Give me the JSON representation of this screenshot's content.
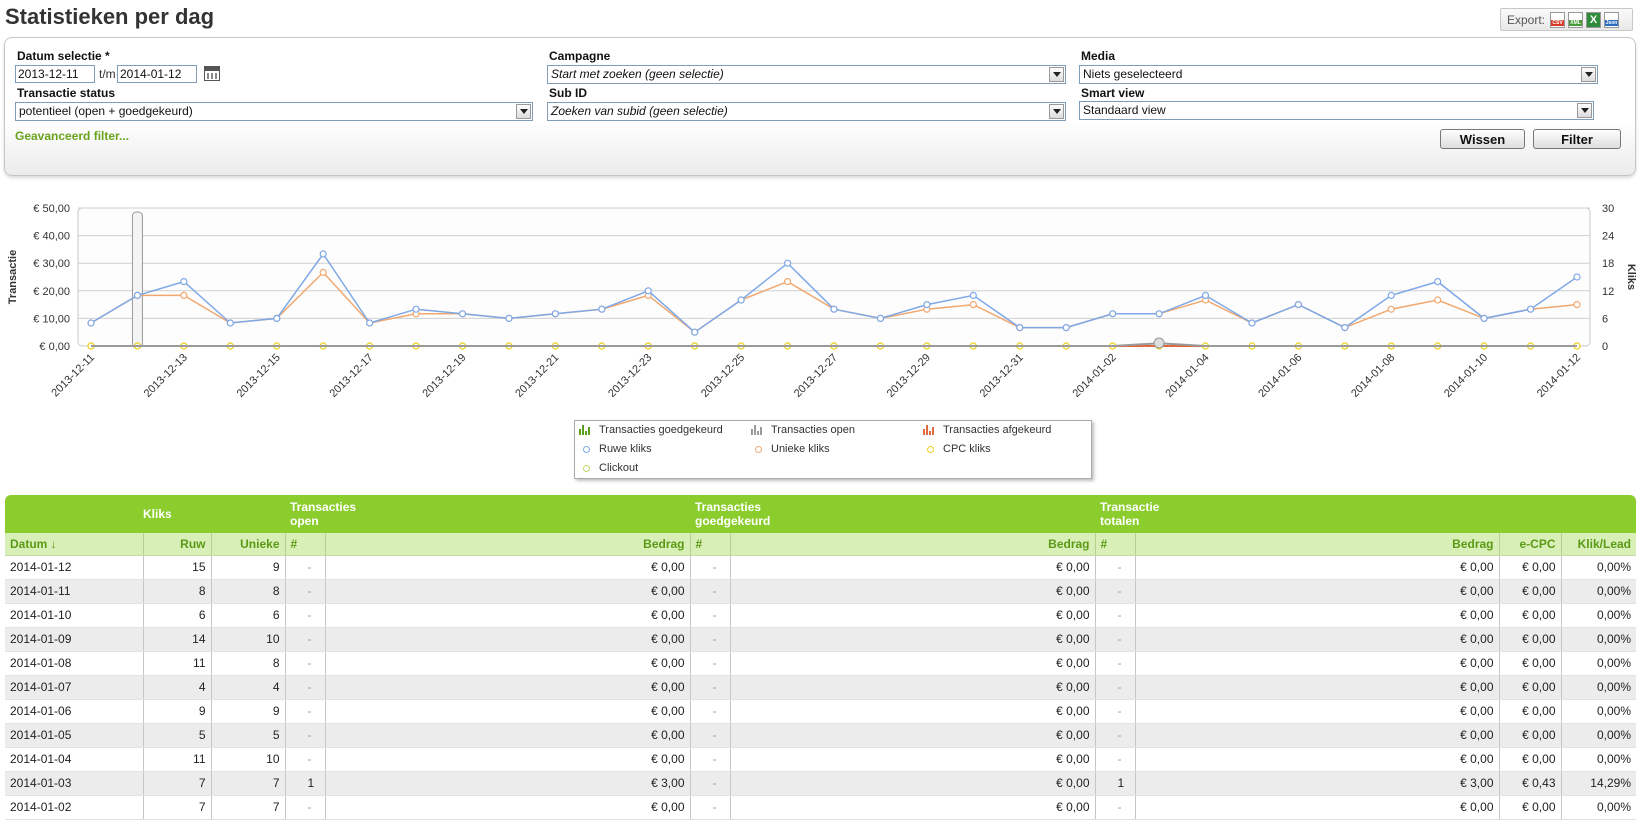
{
  "page": {
    "title": "Statistieken per dag"
  },
  "export": {
    "label": "Export:",
    "csv_icon": "csv-file-icon",
    "xml_icon": "xml-file-icon",
    "xls_icon": "excel-file-icon",
    "json_icon": "json-file-icon",
    "csv_text": "CSV",
    "xml_text": "XML",
    "xls_text": "X",
    "json_text": "Json"
  },
  "filters": {
    "date_label": "Datum selectie *",
    "date_from": "2013-12-11",
    "date_sep": "t/m",
    "date_to": "2014-01-12",
    "status_label": "Transactie status",
    "status_value": "potentieel (open + goedgekeurd)",
    "campaign_label": "Campagne",
    "campaign_value": "Start met zoeken (geen selectie)",
    "subid_label": "Sub ID",
    "subid_value": "Zoeken van subid (geen selectie)",
    "media_label": "Media",
    "media_value": "Niets geselecteerd",
    "smartview_label": "Smart view",
    "smartview_value": "Standaard view",
    "advanced_link": "Geavanceerd filter...",
    "clear_button": "Wissen",
    "filter_button": "Filter"
  },
  "chart_data": {
    "type": "line",
    "x": [
      "2013-12-11",
      "2013-12-12",
      "2013-12-13",
      "2013-12-14",
      "2013-12-15",
      "2013-12-16",
      "2013-12-17",
      "2013-12-18",
      "2013-12-19",
      "2013-12-20",
      "2013-12-21",
      "2013-12-22",
      "2013-12-23",
      "2013-12-24",
      "2013-12-25",
      "2013-12-26",
      "2013-12-27",
      "2013-12-28",
      "2013-12-29",
      "2013-12-30",
      "2013-12-31",
      "2014-01-01",
      "2014-01-02",
      "2014-01-03",
      "2014-01-04",
      "2014-01-05",
      "2014-01-06",
      "2014-01-07",
      "2014-01-08",
      "2014-01-09",
      "2014-01-10",
      "2014-01-11",
      "2014-01-12"
    ],
    "tick_labels": [
      "2013-12-11",
      "2013-12-13",
      "2013-12-15",
      "2013-12-17",
      "2013-12-19",
      "2013-12-21",
      "2013-12-23",
      "2013-12-25",
      "2013-12-27",
      "2013-12-29",
      "2013-12-31",
      "2014-01-02",
      "2014-01-04",
      "2014-01-06",
      "2014-01-08",
      "2014-01-10",
      "2014-01-12"
    ],
    "ylabel_left": "Transactie",
    "ylabel_right": "Kliks",
    "y_left_ticks": [
      "€ 0,00",
      "€ 10,00",
      "€ 20,00",
      "€ 30,00",
      "€ 40,00",
      "€ 50,00"
    ],
    "y_left_range": [
      0,
      50
    ],
    "y_right_ticks": [
      "0",
      "6",
      "12",
      "18",
      "24",
      "30"
    ],
    "y_right_range": [
      0,
      30
    ],
    "grid": true,
    "series": [
      {
        "name": "Ruwe kliks",
        "color": "#7fa8e6",
        "axis": "right",
        "values": [
          5,
          11,
          14,
          5,
          6,
          20,
          5,
          8,
          7,
          6,
          7,
          8,
          12,
          3,
          10,
          18,
          8,
          6,
          9,
          11,
          4,
          4,
          7,
          7,
          11,
          5,
          9,
          4,
          11,
          14,
          6,
          8,
          15
        ]
      },
      {
        "name": "Unieke kliks",
        "color": "#f0a870",
        "axis": "right",
        "values": [
          5,
          11,
          11,
          5,
          6,
          16,
          5,
          7,
          7,
          6,
          7,
          8,
          11,
          3,
          10,
          14,
          8,
          6,
          8,
          9,
          4,
          4,
          7,
          7,
          10,
          5,
          9,
          4,
          8,
          10,
          6,
          8,
          9
        ]
      },
      {
        "name": "Transacties goedgekeurd",
        "color": "#5a9f1e",
        "axis": "left",
        "values": [
          0,
          0,
          0,
          0,
          0,
          0,
          0,
          0,
          0,
          0,
          0,
          0,
          0,
          0,
          0,
          0,
          0,
          0,
          0,
          0,
          0,
          0,
          0,
          0,
          0,
          0,
          0,
          0,
          0,
          0,
          0,
          0,
          0
        ]
      },
      {
        "name": "Transacties open",
        "color": "#9a9a9a",
        "axis": "left",
        "values": [
          0,
          0,
          0,
          0,
          0,
          0,
          0,
          0,
          0,
          0,
          0,
          0,
          0,
          0,
          0,
          0,
          0,
          0,
          0,
          0,
          0,
          0,
          0,
          1,
          0,
          0,
          0,
          0,
          0,
          0,
          0,
          0,
          0
        ]
      },
      {
        "name": "Transacties afgekeurd",
        "color": "#e0683a",
        "axis": "left",
        "values": [
          0,
          0,
          0,
          0,
          0,
          0,
          0,
          0,
          0,
          0,
          0,
          0,
          0,
          0,
          0,
          0,
          0,
          0,
          0,
          0,
          0,
          0,
          0,
          0,
          0,
          0,
          0,
          0,
          0,
          0,
          0,
          0,
          0
        ]
      },
      {
        "name": "CPC kliks",
        "color": "#f0d020",
        "axis": "right",
        "values": [
          0,
          0,
          0,
          0,
          0,
          0,
          0,
          0,
          0,
          0,
          0,
          0,
          0,
          0,
          0,
          0,
          0,
          0,
          0,
          0,
          0,
          0,
          0,
          0,
          0,
          0,
          0,
          0,
          0,
          0,
          0,
          0,
          0
        ]
      },
      {
        "name": "Clickout",
        "color": "#b8d86a",
        "axis": "right",
        "values": [
          0,
          0,
          0,
          0,
          0,
          0,
          0,
          0,
          0,
          0,
          0,
          0,
          0,
          0,
          0,
          0,
          0,
          0,
          0,
          0,
          0,
          0,
          0,
          0,
          0,
          0,
          0,
          0,
          0,
          0,
          0,
          0,
          0
        ]
      }
    ],
    "legend": [
      "Transacties goedgekeurd",
      "Transacties open",
      "Transacties afgekeurd",
      "Ruwe kliks",
      "Unieke kliks",
      "CPC kliks",
      "Clickout"
    ],
    "legend_position": "bottom"
  },
  "table": {
    "groups": {
      "kliks": "Kliks",
      "open": "Transacties open",
      "goed": "Transacties goedgekeurd",
      "totalen": "Transactie totalen"
    },
    "headers": {
      "datum": "Datum ↓",
      "ruw": "Ruw",
      "unieke": "Unieke",
      "open_n": "#",
      "open_bedrag": "Bedrag",
      "goed_n": "#",
      "goed_bedrag": "Bedrag",
      "tot_n": "#",
      "tot_bedrag": "Bedrag",
      "ecpc": "e-CPC",
      "kliklead": "Klik/Lead"
    },
    "rows": [
      {
        "datum": "2014-01-12",
        "ruw": "15",
        "unieke": "9",
        "open_n": "-",
        "open_bedrag": "€ 0,00",
        "goed_n": "-",
        "goed_bedrag": "€ 0,00",
        "tot_n": "-",
        "tot_bedrag": "€ 0,00",
        "ecpc": "€ 0,00",
        "kliklead": "0,00%"
      },
      {
        "datum": "2014-01-11",
        "ruw": "8",
        "unieke": "8",
        "open_n": "-",
        "open_bedrag": "€ 0,00",
        "goed_n": "-",
        "goed_bedrag": "€ 0,00",
        "tot_n": "-",
        "tot_bedrag": "€ 0,00",
        "ecpc": "€ 0,00",
        "kliklead": "0,00%"
      },
      {
        "datum": "2014-01-10",
        "ruw": "6",
        "unieke": "6",
        "open_n": "-",
        "open_bedrag": "€ 0,00",
        "goed_n": "-",
        "goed_bedrag": "€ 0,00",
        "tot_n": "-",
        "tot_bedrag": "€ 0,00",
        "ecpc": "€ 0,00",
        "kliklead": "0,00%"
      },
      {
        "datum": "2014-01-09",
        "ruw": "14",
        "unieke": "10",
        "open_n": "-",
        "open_bedrag": "€ 0,00",
        "goed_n": "-",
        "goed_bedrag": "€ 0,00",
        "tot_n": "-",
        "tot_bedrag": "€ 0,00",
        "ecpc": "€ 0,00",
        "kliklead": "0,00%"
      },
      {
        "datum": "2014-01-08",
        "ruw": "11",
        "unieke": "8",
        "open_n": "-",
        "open_bedrag": "€ 0,00",
        "goed_n": "-",
        "goed_bedrag": "€ 0,00",
        "tot_n": "-",
        "tot_bedrag": "€ 0,00",
        "ecpc": "€ 0,00",
        "kliklead": "0,00%"
      },
      {
        "datum": "2014-01-07",
        "ruw": "4",
        "unieke": "4",
        "open_n": "-",
        "open_bedrag": "€ 0,00",
        "goed_n": "-",
        "goed_bedrag": "€ 0,00",
        "tot_n": "-",
        "tot_bedrag": "€ 0,00",
        "ecpc": "€ 0,00",
        "kliklead": "0,00%"
      },
      {
        "datum": "2014-01-06",
        "ruw": "9",
        "unieke": "9",
        "open_n": "-",
        "open_bedrag": "€ 0,00",
        "goed_n": "-",
        "goed_bedrag": "€ 0,00",
        "tot_n": "-",
        "tot_bedrag": "€ 0,00",
        "ecpc": "€ 0,00",
        "kliklead": "0,00%"
      },
      {
        "datum": "2014-01-05",
        "ruw": "5",
        "unieke": "5",
        "open_n": "-",
        "open_bedrag": "€ 0,00",
        "goed_n": "-",
        "goed_bedrag": "€ 0,00",
        "tot_n": "-",
        "tot_bedrag": "€ 0,00",
        "ecpc": "€ 0,00",
        "kliklead": "0,00%"
      },
      {
        "datum": "2014-01-04",
        "ruw": "11",
        "unieke": "10",
        "open_n": "-",
        "open_bedrag": "€ 0,00",
        "goed_n": "-",
        "goed_bedrag": "€ 0,00",
        "tot_n": "-",
        "tot_bedrag": "€ 0,00",
        "ecpc": "€ 0,00",
        "kliklead": "0,00%"
      },
      {
        "datum": "2014-01-03",
        "ruw": "7",
        "unieke": "7",
        "open_n": "1",
        "open_bedrag": "€ 3,00",
        "goed_n": "-",
        "goed_bedrag": "€ 0,00",
        "tot_n": "1",
        "tot_bedrag": "€ 3,00",
        "ecpc": "€ 0,43",
        "kliklead": "14,29%"
      },
      {
        "datum": "2014-01-02",
        "ruw": "7",
        "unieke": "7",
        "open_n": "-",
        "open_bedrag": "€ 0,00",
        "goed_n": "-",
        "goed_bedrag": "€ 0,00",
        "tot_n": "-",
        "tot_bedrag": "€ 0,00",
        "ecpc": "€ 0,00",
        "kliklead": "0,00%"
      }
    ]
  }
}
